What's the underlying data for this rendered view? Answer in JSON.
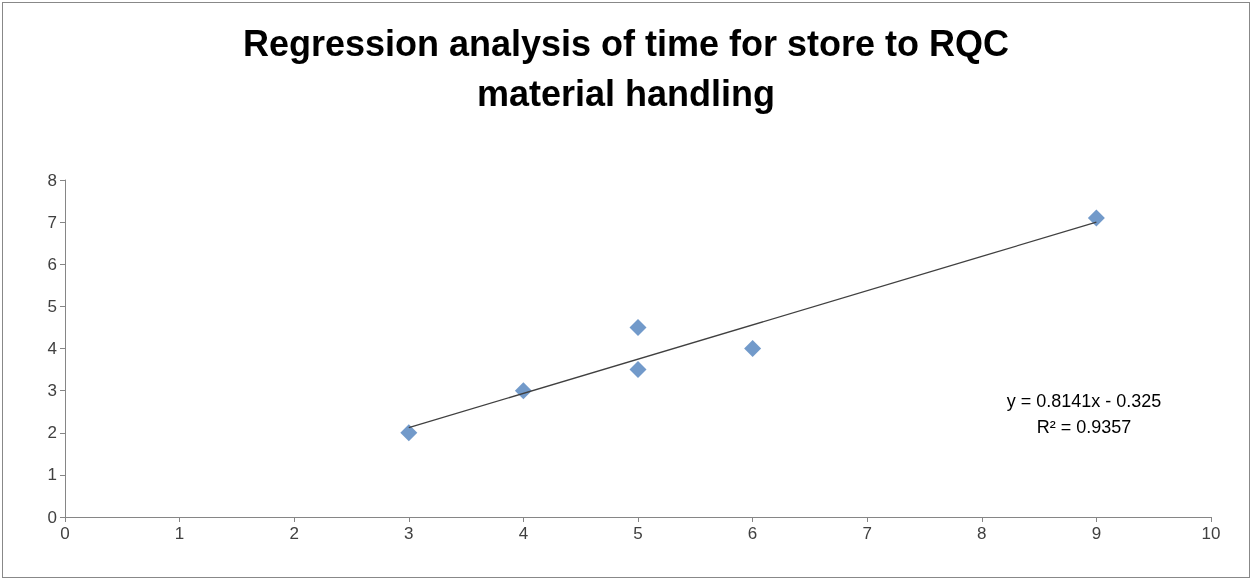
{
  "chart_data": {
    "type": "scatter",
    "title": "Regression analysis of time for store to RQC\nmaterial handling",
    "x": [
      3,
      4,
      5,
      5,
      6,
      9
    ],
    "series": [
      {
        "color": "#4f81bd",
        "marker": "diamond",
        "values": [
          2,
          3,
          4.5,
          3.5,
          4,
          7.1
        ]
      },
      {
        "type": "line",
        "color": "#404040",
        "marker": "none",
        "x": [
          3,
          9
        ],
        "values": [
          2.12,
          7.0
        ]
      }
    ],
    "xlim": [
      0,
      10
    ],
    "xticks": [
      0,
      1,
      2,
      3,
      4,
      5,
      6,
      7,
      8,
      9,
      10
    ],
    "ylim": [
      0,
      8
    ],
    "yticks": [
      0,
      1,
      2,
      3,
      4,
      5,
      6,
      7,
      8
    ],
    "grid": false,
    "annotations": [
      "y = 0.8141x - 0.325\nR² = 0.9357"
    ]
  }
}
